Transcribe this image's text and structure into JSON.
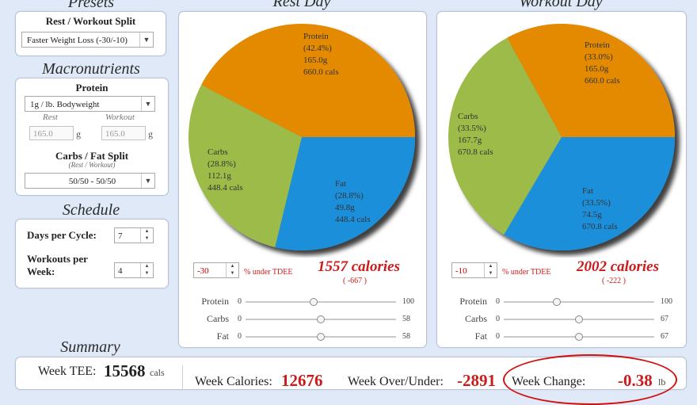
{
  "presets": {
    "title": "Presets",
    "split_label": "Rest / Workout Split",
    "split_value": "Faster Weight Loss (-30/-10)"
  },
  "macronutrients": {
    "title": "Macronutrients",
    "protein_label": "Protein",
    "protein_value": "1g / lb. Bodyweight",
    "rest_label": "Rest",
    "workout_label": "Workout",
    "rest_value": "165.0",
    "workout_value": "165.0",
    "unit": "g",
    "split_label": "Carbs / Fat Split",
    "split_sub": "(Rest / Workout)",
    "split_value": "50/50 - 50/50"
  },
  "schedule": {
    "title": "Schedule",
    "days_label": "Days per Cycle:",
    "days_value": "7",
    "workouts_label_1": "Workouts per",
    "workouts_label_2": "Week:",
    "workouts_value": "4"
  },
  "rest_day": {
    "title": "Rest Day",
    "slices": [
      {
        "name": "Protein",
        "pct": "(42.4%)",
        "grams": "165.0g",
        "cals": "660.0 cals",
        "value": 42.4,
        "color": "#e48a00"
      },
      {
        "name": "Fat",
        "pct": "(28.8%)",
        "grams": "49.8g",
        "cals": "448.4 cals",
        "value": 28.8,
        "color": "#1e8fdb"
      },
      {
        "name": "Carbs",
        "pct": "(28.8%)",
        "grams": "112.1g",
        "cals": "448.4 cals",
        "value": 28.8,
        "color": "#9cbb4a"
      }
    ],
    "percent_value": "-30",
    "percent_label": "% under TDEE",
    "calories": "1557 calories",
    "deficit": "( -667 )",
    "sliders": [
      {
        "label": "Protein",
        "min": "0",
        "max": "100",
        "fraction": 0.45
      },
      {
        "label": "Carbs",
        "min": "0",
        "max": "58",
        "fraction": 0.5
      },
      {
        "label": "Fat",
        "min": "0",
        "max": "58",
        "fraction": 0.5
      }
    ]
  },
  "workout_day": {
    "title": "Workout Day",
    "slices": [
      {
        "name": "Protein",
        "pct": "(33.0%)",
        "grams": "165.0g",
        "cals": "660.0 cals",
        "value": 33.0,
        "color": "#e48a00"
      },
      {
        "name": "Fat",
        "pct": "(33.5%)",
        "grams": "74.5g",
        "cals": "670.8 cals",
        "value": 33.5,
        "color": "#1e8fdb"
      },
      {
        "name": "Carbs",
        "pct": "(33.5%)",
        "grams": "167.7g",
        "cals": "670.8 cals",
        "value": 33.5,
        "color": "#9cbb4a"
      }
    ],
    "percent_value": "-10",
    "percent_label": "% under TDEE",
    "calories": "2002 calories",
    "deficit": "( -222 )",
    "sliders": [
      {
        "label": "Protein",
        "min": "0",
        "max": "100",
        "fraction": 0.35
      },
      {
        "label": "Carbs",
        "min": "0",
        "max": "67",
        "fraction": 0.5
      },
      {
        "label": "Fat",
        "min": "0",
        "max": "67",
        "fraction": 0.5
      }
    ]
  },
  "summary": {
    "title": "Summary",
    "week_tee_label": "Week TEE:",
    "week_tee_value": "15568",
    "week_tee_unit": "cals",
    "week_calories_label": "Week Calories:",
    "week_calories_value": "12676",
    "week_over_under_label": "Week Over/Under:",
    "week_over_under_value": "-2891",
    "week_change_label": "Week Change:",
    "week_change_value": "-0.38",
    "week_change_unit": "lb"
  }
}
